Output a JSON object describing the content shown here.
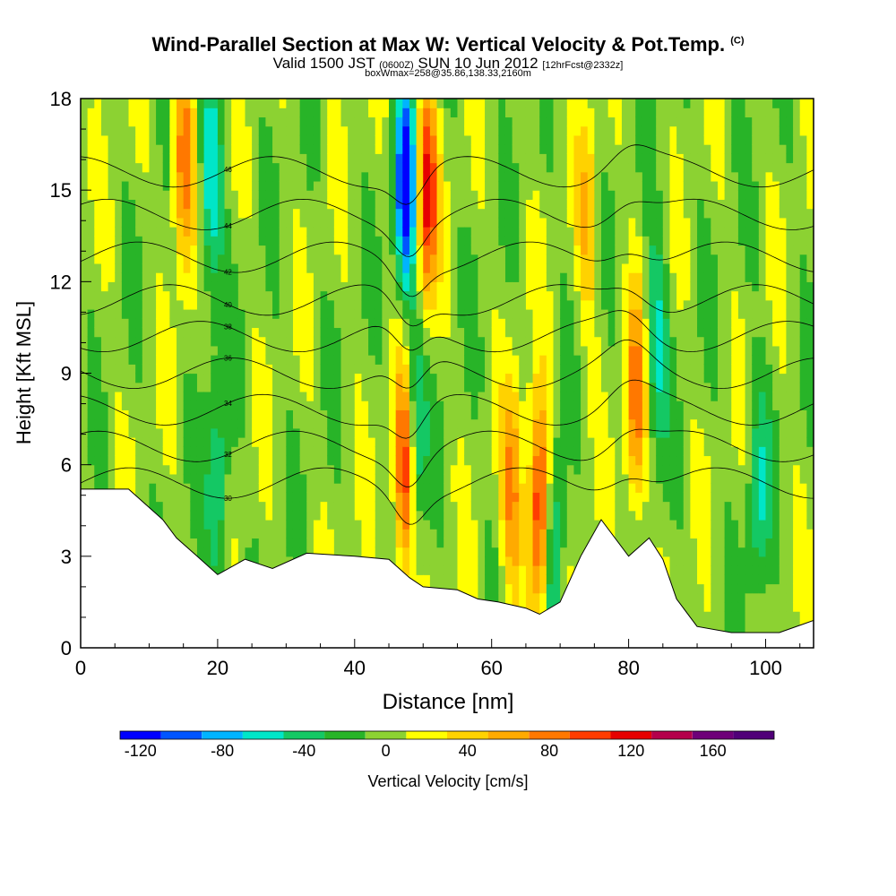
{
  "title": {
    "main": "Wind-Parallel Section at Max W: Vertical Velocity & Pot.Temp.",
    "copyright": "(C)",
    "valid_prefix": "Valid 1500 JST",
    "valid_z": "(0600Z)",
    "valid_date": "SUN 10 Jun 2012",
    "forecast": "[12hrFcst@2332z]",
    "box": "boxWmax=258@35.86,138.33,2160m"
  },
  "chart_data": {
    "type": "heatmap",
    "xlabel": "Distance [nm]",
    "ylabel": "Height [Kft MSL]",
    "xlim": [
      0,
      107
    ],
    "ylim": [
      0,
      18
    ],
    "xticks": [
      0,
      20,
      40,
      60,
      80,
      100
    ],
    "yticks": [
      0,
      3,
      6,
      9,
      12,
      15,
      18
    ],
    "colorbar": {
      "label": "Vertical Velocity [cm/s]",
      "ticks": [
        -120,
        -80,
        -40,
        0,
        40,
        80,
        120,
        160
      ],
      "levels": [
        -130,
        -110,
        -90,
        -70,
        -50,
        -30,
        -10,
        10,
        30,
        50,
        70,
        90,
        110,
        130,
        150,
        170,
        190
      ],
      "colors": [
        "#0000ff",
        "#0055ff",
        "#00b4ff",
        "#00e6c8",
        "#14c864",
        "#28b428",
        "#8cd232",
        "#ffff00",
        "#ffd200",
        "#ffaa00",
        "#ff7800",
        "#ff3c00",
        "#e60000",
        "#b4004b",
        "#6e0078",
        "#500078"
      ]
    },
    "terrain_kft": {
      "x": [
        0,
        7,
        12,
        14,
        17,
        20,
        24,
        28,
        33,
        40,
        45,
        48,
        50,
        55,
        58,
        61,
        65,
        67,
        70,
        73,
        76,
        80,
        83,
        85,
        87,
        90,
        95,
        102,
        107
      ],
      "y": [
        5.2,
        5.2,
        4.2,
        3.6,
        3.0,
        2.4,
        2.9,
        2.6,
        3.1,
        3.0,
        2.9,
        2.3,
        2.0,
        1.9,
        1.6,
        1.5,
        1.3,
        1.1,
        1.5,
        3.0,
        4.2,
        3.0,
        3.6,
        2.9,
        1.6,
        0.7,
        0.5,
        0.5,
        0.9
      ]
    },
    "updrafts": [
      {
        "x": 47.5,
        "y": 6.0,
        "peak": 150
      },
      {
        "x": 67,
        "y": 4.5,
        "peak": 130
      },
      {
        "x": 63,
        "y": 5.0,
        "peak": 70
      },
      {
        "x": 50.5,
        "y": 15.0,
        "peak": 120
      },
      {
        "x": 15,
        "y": 16.0,
        "peak": 90
      },
      {
        "x": 81,
        "y": 8.0,
        "peak": 80
      },
      {
        "x": 74,
        "y": 14.0,
        "peak": 45
      }
    ],
    "downdrafts": [
      {
        "x": 47.5,
        "y": 15.0,
        "peak": -130
      },
      {
        "x": 48.5,
        "y": 7.0,
        "peak": -100
      },
      {
        "x": 19,
        "y": 15.0,
        "peak": -70
      },
      {
        "x": 20,
        "y": 5.0,
        "peak": -55
      },
      {
        "x": 69,
        "y": 3.0,
        "peak": -75
      },
      {
        "x": 84,
        "y": 10.0,
        "peak": -55
      },
      {
        "x": 99,
        "y": 5.0,
        "peak": -50
      }
    ],
    "theta_contours": [
      {
        "label": "30",
        "base": 5.4
      },
      {
        "label": "32",
        "base": 6.6
      },
      {
        "label": "34",
        "base": 7.8
      },
      {
        "label": "36",
        "base": 9.0
      },
      {
        "label": "38",
        "base": 10.2
      },
      {
        "label": "40",
        "base": 11.4
      },
      {
        "label": "42",
        "base": 12.8
      },
      {
        "label": "44",
        "base": 14.2
      },
      {
        "label": "46",
        "base": 15.6
      }
    ]
  }
}
